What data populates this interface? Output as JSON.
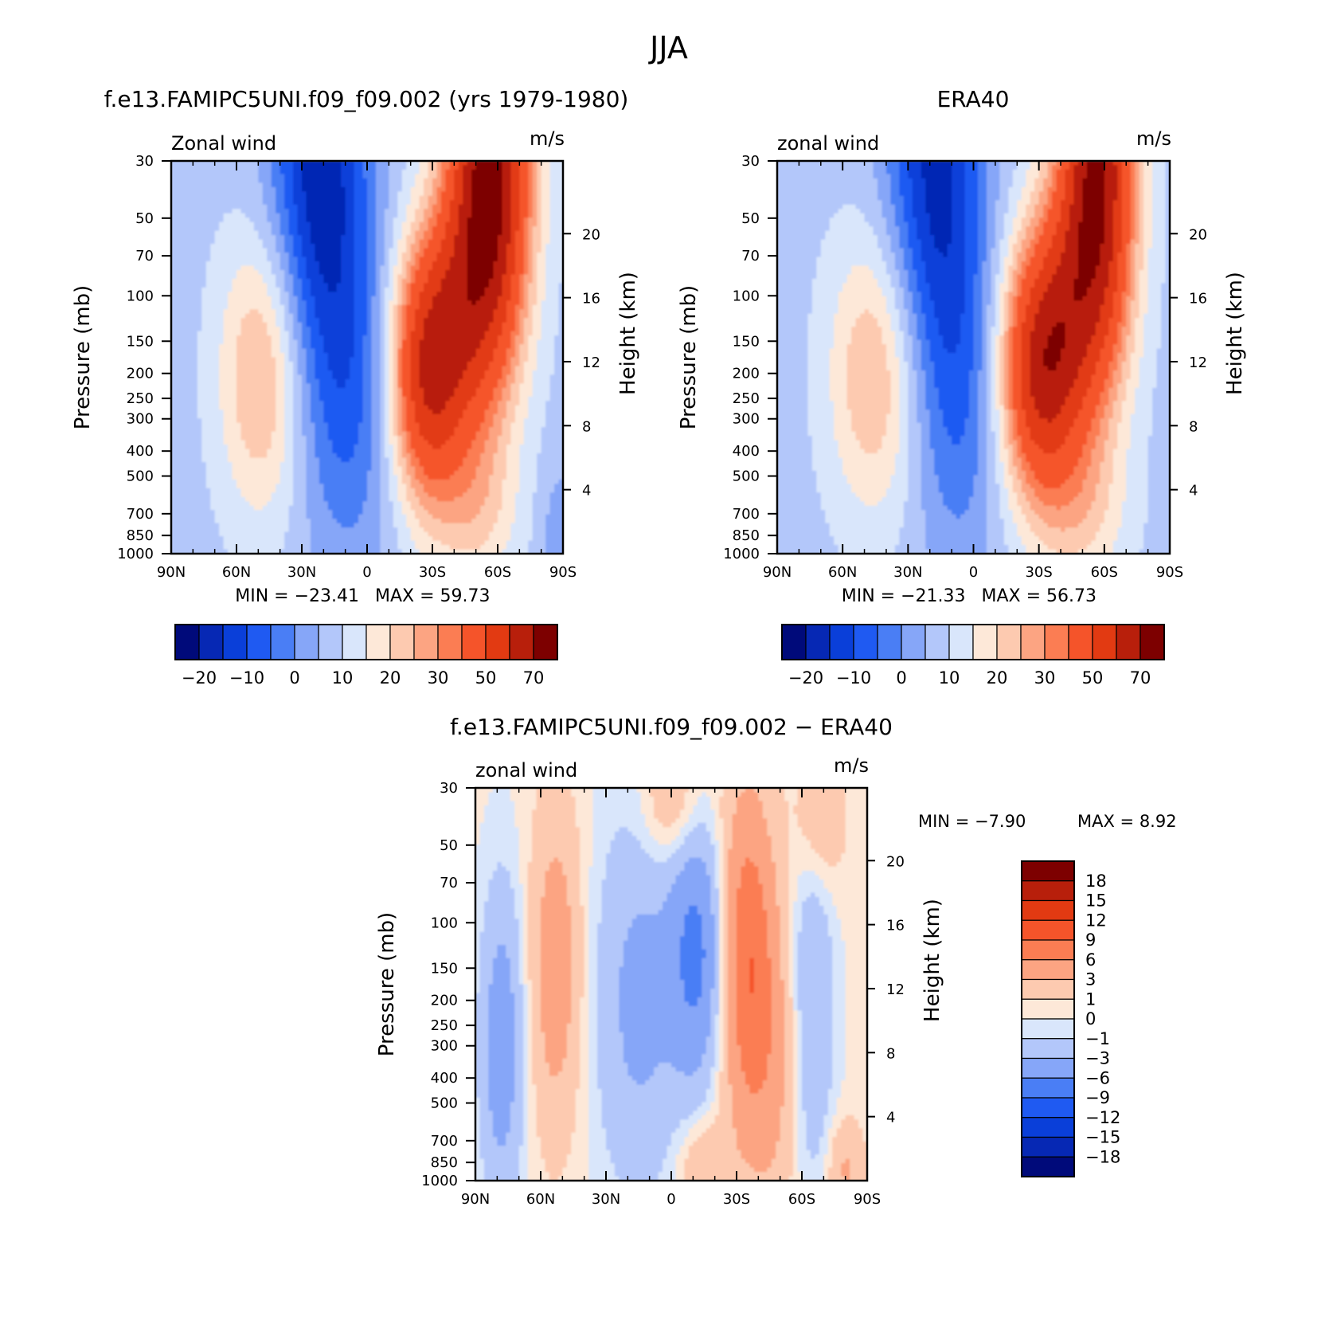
{
  "figure_title": "JJA",
  "chart_data": [
    {
      "type": "heatmap",
      "id": "model",
      "title": "f.e13.FAMIPC5UNI.f09_f09.002 (yrs 1979-1980)",
      "subtitle_left": "Zonal wind",
      "subtitle_right": "m/s",
      "ylabel": "Pressure (mb)",
      "ylabel_right": "Height (km)",
      "x_ticks": [
        "90N",
        "60N",
        "30N",
        "0",
        "30S",
        "60S",
        "90S"
      ],
      "xlim": [
        90,
        -90
      ],
      "y_ticks": [
        30,
        50,
        70,
        100,
        150,
        200,
        250,
        300,
        400,
        500,
        700,
        850,
        1000
      ],
      "ylim": [
        1000,
        30
      ],
      "y_scale": "log",
      "y_right_ticks": [
        4,
        8,
        12,
        16,
        20
      ],
      "min_label": "MIN = −23.41",
      "max_label": "MAX = 59.73",
      "min": -23.41,
      "max": 59.73,
      "colorbar_labels": [
        "−20",
        "−10",
        "0",
        "10",
        "20",
        "30",
        "50",
        "70"
      ],
      "colorbar_orientation": "horizontal",
      "features": [
        {
          "lat": 47,
          "p": 200,
          "value": 22,
          "shape": "tropospheric jet maximum"
        },
        {
          "lat": -30,
          "p": 200,
          "value": 52,
          "shape": "subtropical jet maximum"
        },
        {
          "lat": -57,
          "p": 30,
          "value": 59.73,
          "shape": "polar night jet"
        },
        {
          "lat": 20,
          "p": 30,
          "value": -23.41,
          "shape": "tropical easterlies"
        }
      ]
    },
    {
      "type": "heatmap",
      "id": "obs",
      "title": "ERA40",
      "subtitle_left": "zonal wind",
      "subtitle_right": "m/s",
      "ylabel": "Pressure (mb)",
      "ylabel_right": "Height (km)",
      "x_ticks": [
        "90N",
        "60N",
        "30N",
        "0",
        "30S",
        "60S",
        "90S"
      ],
      "xlim": [
        90,
        -90
      ],
      "y_ticks": [
        30,
        50,
        70,
        100,
        150,
        200,
        250,
        300,
        400,
        500,
        700,
        850,
        1000
      ],
      "ylim": [
        1000,
        30
      ],
      "y_scale": "log",
      "y_right_ticks": [
        4,
        8,
        12,
        16,
        20
      ],
      "min_label": "MIN = −21.33",
      "max_label": "MAX = 56.73",
      "min": -21.33,
      "max": 56.73,
      "colorbar_labels": [
        "−20",
        "−10",
        "0",
        "10",
        "20",
        "30",
        "50",
        "70"
      ],
      "colorbar_orientation": "horizontal",
      "features": [
        {
          "lat": 43,
          "p": 200,
          "value": 22,
          "shape": "tropospheric jet maximum"
        },
        {
          "lat": -31,
          "p": 200,
          "value": 53,
          "shape": "subtropical jet maximum"
        },
        {
          "lat": -58,
          "p": 30,
          "value": 56.73,
          "shape": "polar night jet"
        },
        {
          "lat": 17,
          "p": 30,
          "value": -21.33,
          "shape": "tropical easterlies"
        }
      ]
    },
    {
      "type": "heatmap",
      "id": "diff",
      "title": "f.e13.FAMIPC5UNI.f09_f09.002 − ERA40",
      "subtitle_left": "zonal wind",
      "subtitle_right": "m/s",
      "ylabel": "Pressure (mb)",
      "ylabel_right": "Height (km)",
      "x_ticks": [
        "90N",
        "60N",
        "30N",
        "0",
        "30S",
        "60S",
        "90S"
      ],
      "xlim": [
        90,
        -90
      ],
      "y_ticks": [
        30,
        50,
        70,
        100,
        150,
        200,
        250,
        300,
        400,
        500,
        700,
        850,
        1000
      ],
      "ylim": [
        1000,
        30
      ],
      "y_scale": "log",
      "y_right_ticks": [
        4,
        8,
        12,
        16,
        20
      ],
      "min_label": "MIN = −7.90",
      "max_label": "MAX = 8.92",
      "min": -7.9,
      "max": 8.92,
      "colorbar_labels": [
        "18",
        "15",
        "12",
        "9",
        "6",
        "3",
        "1",
        "0",
        "−1",
        "−3",
        "−6",
        "−9",
        "−12",
        "−15",
        "−18"
      ],
      "colorbar_orientation": "vertical",
      "features": [
        {
          "lat": -33,
          "p": 130,
          "value": 8.92,
          "shape": "positive band"
        },
        {
          "lat": 53,
          "p": 150,
          "value": 4,
          "shape": "positive band"
        },
        {
          "lat": -11,
          "p": 130,
          "value": -7.9,
          "shape": "negative core"
        },
        {
          "lat": 78,
          "p": 300,
          "value": -6,
          "shape": "negative band"
        }
      ]
    }
  ],
  "colors": {
    "main_scale": [
      "#000a7a",
      "#0628b4",
      "#0a3fd9",
      "#1f5af2",
      "#4a7ef5",
      "#86a6f8",
      "#b3c7fa",
      "#d9e6fb",
      "#fde8d8",
      "#fdcab0",
      "#fca482",
      "#fb7d53",
      "#f5542a",
      "#e23a12",
      "#b81f0b",
      "#7d0000"
    ],
    "diff_scale": [
      "#000a7a",
      "#0628b4",
      "#0a3fd9",
      "#1f5af2",
      "#4a7ef5",
      "#86a6f8",
      "#b3c7fa",
      "#d9e6fb",
      "#fde8d8",
      "#fdcab0",
      "#fca482",
      "#fb7d53",
      "#f5542a",
      "#e23a12",
      "#b81f0b",
      "#7d0000"
    ]
  }
}
